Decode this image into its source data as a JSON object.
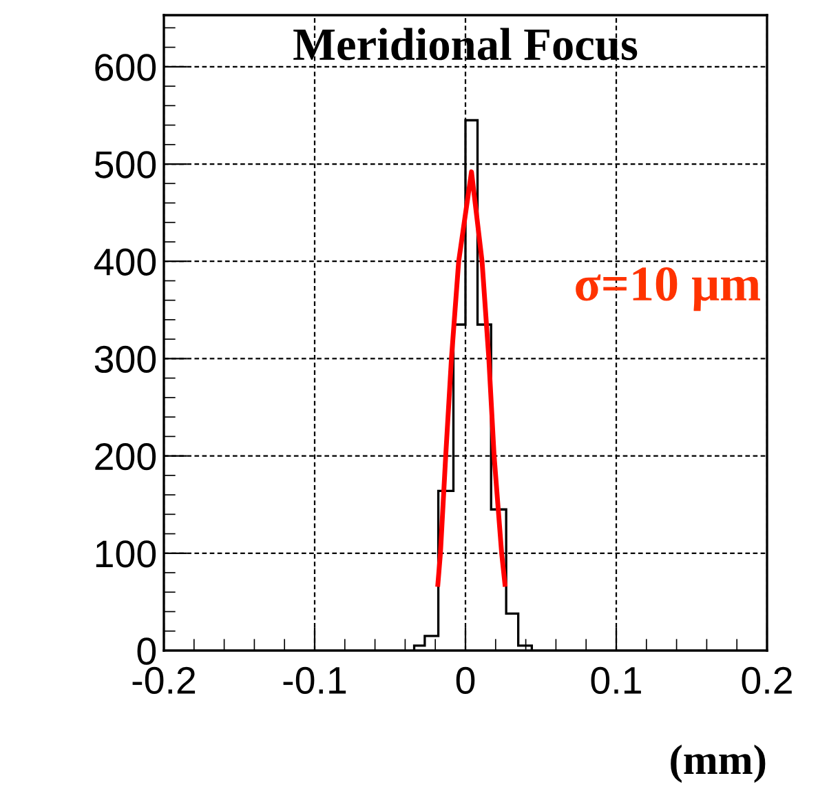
{
  "chart_data": {
    "type": "histogram",
    "title": "Meridional Focus",
    "xlabel": "(mm)",
    "annotations": [
      "σ=10 μm"
    ],
    "series": [
      {
        "color": "#000000",
        "bins": [
          -0.034,
          -0.027,
          -0.018,
          -0.008,
          0,
          0.008,
          0.017,
          0.027,
          0.035,
          0.044
        ],
        "values": [
          5,
          15,
          164,
          335,
          545,
          335,
          145,
          38,
          5
        ]
      },
      {
        "type": "line",
        "color": "#ff0000",
        "x": [
          -0.0183,
          -0.0166,
          -0.0131,
          -0.0093,
          -0.0045,
          0.004,
          0.011,
          0.0155,
          0.019,
          0.024,
          0.0262
        ],
        "values": [
          68,
          100,
          200,
          300,
          400,
          492,
          400,
          300,
          200,
          100,
          68
        ]
      }
    ],
    "xlim": [
      -0.2,
      0.2
    ],
    "ylim": [
      0,
      653
    ],
    "xticks": [
      -0.2,
      -0.1,
      {
        "value": 0,
        "label": "0"
      },
      0.1,
      0.2
    ],
    "yticks": [
      0,
      100,
      200,
      300,
      400,
      500,
      600
    ],
    "grid": true
  }
}
